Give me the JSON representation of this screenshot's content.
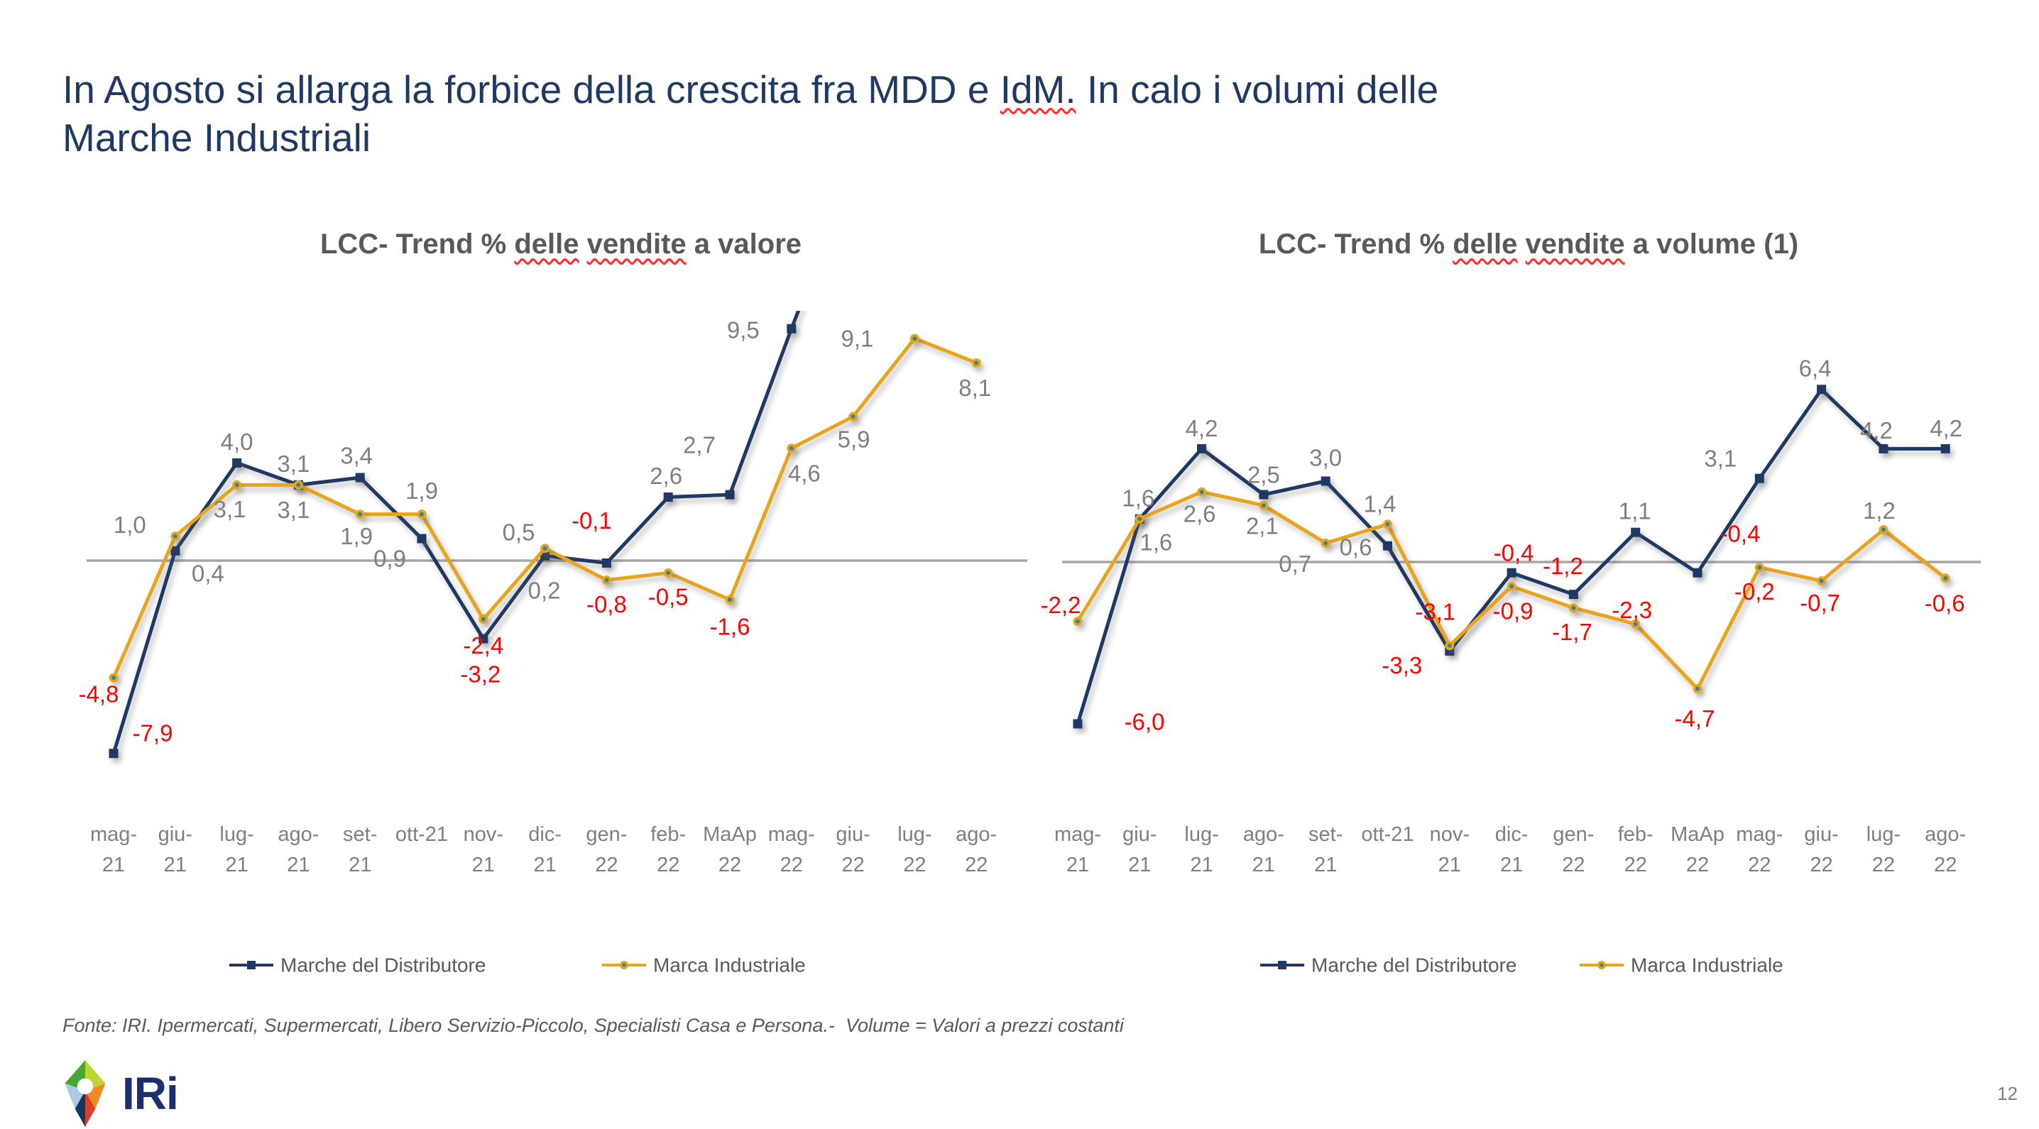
{
  "slide": {
    "title_lines": [
      "In Agosto si allarga la forbice della crescita fra MDD e IdM. In calo i volumi delle",
      "Marche Industriali"
    ],
    "title_squiggle_words": [
      "IdM."
    ],
    "footer": "Fonte: IRI. Ipermercati, Supermercati, Libero Servizio-Piccolo, Specialisti Casa e Persona.-  Volume = Valori a prezzi costanti",
    "page_number": "12",
    "logo_text": "IRi"
  },
  "colors": {
    "title_blue": "#1F3864",
    "mdd_blue": "#1F3864",
    "idm_yellow": "#E8A51B",
    "marker_center_teal": "#31859C",
    "label_gray": "#7F7F7F",
    "label_red": "#FF0000",
    "chart_title_gray": "#595959",
    "legend_gray": "#595959",
    "axis_line_gray": "#A6A6A6",
    "axis_label_gray": "#7F7F7F"
  },
  "chart_data": [
    {
      "id": "value-trend",
      "type": "line",
      "title": "LCC- Trend % delle vendite a valore",
      "title_squiggle_words": [
        "delle",
        "vendite"
      ],
      "categories": [
        "mag-21",
        "giu-21",
        "lug-21",
        "ago-21",
        "set-21",
        "ott-21",
        "nov-21",
        "dic-21",
        "gen-22",
        "feb-22",
        "MaAp 22",
        "mag-22",
        "giu-22",
        "lug-22",
        "ago-22"
      ],
      "xlabel": "",
      "ylabel": "",
      "ylim": [
        -9.5,
        10.2
      ],
      "grid": false,
      "legend_position": "bottom",
      "baseline_value": 0,
      "series": [
        {
          "name": "Marche del Distributore",
          "color_key": "mdd_blue",
          "values": [
            -7.9,
            0.4,
            4.0,
            3.1,
            3.4,
            0.9,
            -3.2,
            0.2,
            -0.1,
            2.6,
            2.7,
            9.5,
            null,
            null,
            null
          ],
          "labels": [
            "-7,9",
            "0,4",
            "4,0",
            "3,1",
            "3,4",
            "0,9",
            "-3,2",
            "0,2",
            "-0,1",
            "2,6",
            "2,7",
            "9,5",
            "",
            "",
            ""
          ],
          "continues_beyond_last_point": true
        },
        {
          "name": "Marca Industriale",
          "color_key": "idm_yellow",
          "values": [
            -4.8,
            1.0,
            3.1,
            3.1,
            1.9,
            1.9,
            -2.4,
            0.5,
            -0.8,
            -0.5,
            -1.6,
            4.6,
            5.9,
            9.1,
            8.1
          ],
          "labels": [
            "-4,8",
            "1,0",
            "3,1",
            "3,1",
            "1,9",
            "1,9",
            "-2,4",
            "0,5",
            "-0,8",
            "-0,5",
            "-1,6",
            "4,6",
            "5,9",
            "9,1",
            "8,1"
          ],
          "continues_beyond_last_point": false
        }
      ],
      "legend": [
        "Marche del Distributore",
        "Marca Industriale"
      ]
    },
    {
      "id": "volume-trend",
      "type": "line",
      "title": "LCC- Trend % delle vendite a volume (1)",
      "title_squiggle_words": [
        "delle",
        "vendite"
      ],
      "categories": [
        "mag-21",
        "giu-21",
        "lug-21",
        "ago-21",
        "set-21",
        "ott-21",
        "nov-21",
        "dic-21",
        "gen-22",
        "feb-22",
        "MaAp 22",
        "mag-22",
        "giu-22",
        "lug-22",
        "ago-22"
      ],
      "xlabel": "",
      "ylabel": "",
      "ylim": [
        -7.0,
        7.5
      ],
      "grid": false,
      "legend_position": "bottom",
      "baseline_value": 0,
      "series": [
        {
          "name": "Marche del Distributore",
          "color_key": "mdd_blue",
          "values": [
            -6.0,
            1.6,
            4.2,
            2.5,
            3.0,
            0.6,
            -3.3,
            -0.4,
            -1.2,
            1.1,
            -0.4,
            3.1,
            6.4,
            4.2,
            4.2
          ],
          "labels": [
            "-6,0",
            "1,6",
            "4,2",
            "2,5",
            "3,0",
            "0,6",
            "-3,3",
            "-0,4",
            "-1,2",
            "1,1",
            "-0,4",
            "3,1",
            "6,4",
            "4,2",
            "4,2"
          ],
          "continues_beyond_last_point": false
        },
        {
          "name": "Marca Industriale",
          "color_key": "idm_yellow",
          "values": [
            -2.2,
            1.6,
            2.6,
            2.1,
            0.7,
            1.4,
            -3.1,
            -0.9,
            -1.7,
            -2.3,
            -4.7,
            -0.2,
            -0.7,
            1.2,
            -0.6
          ],
          "labels": [
            "-2,2",
            "1,6",
            "2,6",
            "2,1",
            "0,7",
            "1,4",
            "-3,1",
            "-0,9",
            "-1,7",
            "-2,3",
            "-4,7",
            "-0,2",
            "-0,7",
            "1,2",
            "-0,6"
          ],
          "continues_beyond_last_point": false
        }
      ],
      "legend": [
        "Marche del Distributore",
        "Marca Industriale"
      ]
    }
  ]
}
